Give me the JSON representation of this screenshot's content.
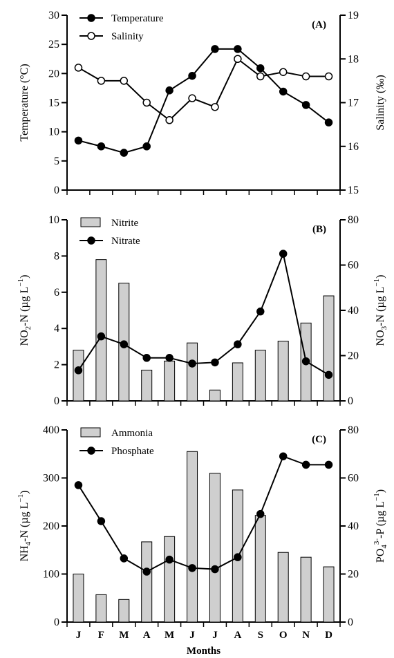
{
  "chart_data": [
    {
      "panel": "(A)",
      "type": "line",
      "categories": [
        "J",
        "F",
        "M",
        "A",
        "M",
        "J",
        "J",
        "A",
        "S",
        "O",
        "N",
        "D"
      ],
      "ylabel_left": "Temperature (°C)",
      "ylabel_right": "Salinity (‰)",
      "ylim_left": [
        0,
        30
      ],
      "ylim_right": [
        15,
        19
      ],
      "yticks_left": [
        0,
        5,
        10,
        15,
        20,
        25,
        30
      ],
      "yticks_right": [
        15,
        16,
        17,
        18,
        19
      ],
      "legend_position": "top-left",
      "series": [
        {
          "name": "Temperature",
          "axis": "left",
          "marker": "filled-circle",
          "values": [
            8.5,
            7.5,
            6.4,
            7.5,
            17.1,
            19.6,
            24.2,
            24.2,
            20.9,
            16.9,
            14.6,
            11.6
          ]
        },
        {
          "name": "Salinity",
          "axis": "right",
          "marker": "open-circle",
          "values": [
            17.8,
            17.5,
            17.5,
            17.0,
            16.6,
            17.1,
            16.9,
            18.0,
            17.6,
            17.7,
            17.6,
            17.6
          ]
        }
      ]
    },
    {
      "panel": "(B)",
      "type": "bar+line",
      "categories": [
        "J",
        "F",
        "M",
        "A",
        "M",
        "J",
        "J",
        "A",
        "S",
        "O",
        "N",
        "D"
      ],
      "ylabel_left_main": "NO",
      "ylabel_left_sub": "2",
      "ylabel_left_rest": "-N (µg L",
      "ylabel_left_sup": "−1",
      "ylabel_left_end": ")",
      "ylabel_right_main": "NO",
      "ylabel_right_sub": "3",
      "ylabel_right_rest": "-N (µg L",
      "ylabel_right_sup": "−1",
      "ylabel_right_end": ")",
      "ylim_left": [
        0,
        10
      ],
      "ylim_right": [
        0,
        80
      ],
      "yticks_left": [
        0,
        2,
        4,
        6,
        8,
        10
      ],
      "yticks_right": [
        0,
        20,
        40,
        60,
        80
      ],
      "legend_position": "top-left",
      "series": [
        {
          "name": "Nitrite",
          "axis": "left",
          "kind": "bar",
          "values": [
            2.8,
            7.8,
            6.5,
            1.7,
            2.2,
            3.2,
            0.6,
            2.1,
            2.8,
            3.3,
            4.3,
            5.8
          ]
        },
        {
          "name": "Nitrate",
          "axis": "right",
          "kind": "line",
          "marker": "filled-circle",
          "values": [
            13.5,
            28.5,
            25.0,
            19.0,
            19.0,
            16.5,
            17.0,
            25.0,
            39.5,
            65.0,
            17.5,
            11.5
          ]
        }
      ]
    },
    {
      "panel": "(C)",
      "type": "bar+line",
      "categories": [
        "J",
        "F",
        "M",
        "A",
        "M",
        "J",
        "J",
        "A",
        "S",
        "O",
        "N",
        "D"
      ],
      "xlabel": "Months",
      "ylabel_left_main": "NH",
      "ylabel_left_sub": "4",
      "ylabel_left_rest": "-N (µg L",
      "ylabel_left_sup": "−1",
      "ylabel_left_end": ")",
      "ylabel_right_main": "PO",
      "ylabel_right_sub": "4",
      "ylabel_right_sup3": "3-",
      "ylabel_right_rest": "-P (µg L",
      "ylabel_right_sup": "−1",
      "ylabel_right_end": ")",
      "ylim_left": [
        0,
        400
      ],
      "ylim_right": [
        0,
        80
      ],
      "yticks_left": [
        0,
        100,
        200,
        300,
        400
      ],
      "yticks_right": [
        0,
        20,
        40,
        60,
        80
      ],
      "legend_position": "top-left",
      "series": [
        {
          "name": "Ammonia",
          "axis": "left",
          "kind": "bar",
          "values": [
            100,
            57,
            47,
            167,
            178,
            355,
            310,
            275,
            222,
            145,
            135,
            115
          ]
        },
        {
          "name": "Phosphate",
          "axis": "right",
          "kind": "line",
          "marker": "filled-circle",
          "values": [
            57,
            42,
            26.5,
            21,
            26,
            22.5,
            22,
            27,
            45,
            69,
            65.5,
            65.5
          ]
        }
      ]
    }
  ]
}
